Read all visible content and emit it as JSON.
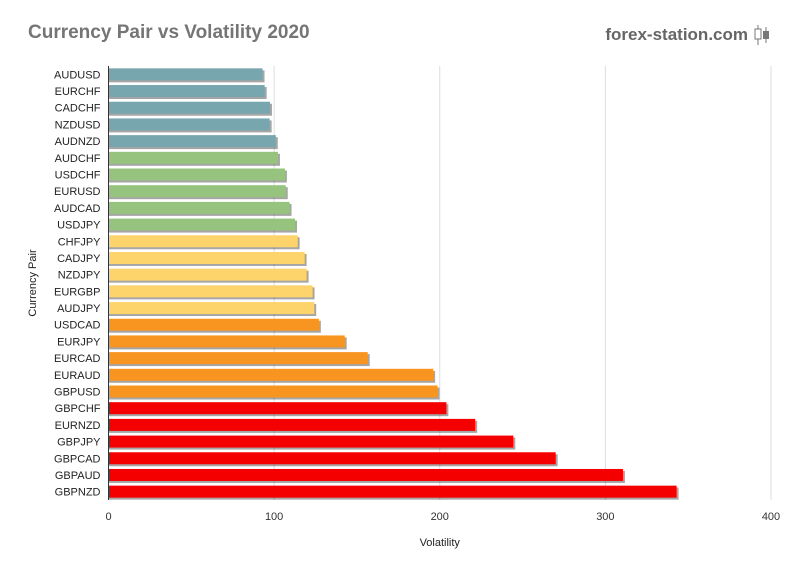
{
  "chart_data": {
    "type": "bar",
    "orientation": "horizontal",
    "title": "Currency Pair vs Volatility 2020",
    "xlabel": "Volatility",
    "ylabel": "Currency Pair",
    "xlim": [
      0,
      400
    ],
    "xticks": [
      0,
      100,
      200,
      300,
      400
    ],
    "grid": true,
    "categories": [
      "AUDUSD",
      "EURCHF",
      "CADCHF",
      "NZDUSD",
      "AUDNZD",
      "AUDCHF",
      "USDCHF",
      "EURUSD",
      "AUDCAD",
      "USDJPY",
      "CHFJPY",
      "CADJPY",
      "NZDJPY",
      "EURGBP",
      "AUDJPY",
      "USDCAD",
      "EURJPY",
      "EURCAD",
      "EURAUD",
      "GBPUSD",
      "GBPCHF",
      "EURNZD",
      "GBPJPY",
      "GBPCAD",
      "GBPAUD",
      "GBPNZD"
    ],
    "values": [
      93,
      94.3,
      97.5,
      97.3,
      101,
      102.3,
      106.5,
      107,
      109.3,
      112.6,
      114.2,
      118.4,
      119.6,
      123.2,
      124.2,
      127,
      142.6,
      156.5,
      196,
      198.6,
      204,
      221.4,
      244.4,
      270,
      310.6,
      343
    ],
    "colors": [
      "#78a6ae",
      "#78a6ae",
      "#78a6ae",
      "#78a6ae",
      "#78a6ae",
      "#96c47e",
      "#96c47e",
      "#96c47e",
      "#96c47e",
      "#96c47e",
      "#fdd46c",
      "#fdd46c",
      "#fdd46c",
      "#fdd46c",
      "#fdd46c",
      "#f89521",
      "#f89521",
      "#f89521",
      "#f89521",
      "#f89521",
      "#f40000",
      "#f40000",
      "#f40000",
      "#f40000",
      "#f40000",
      "#f40000"
    ]
  },
  "watermark": "forex-station.com"
}
